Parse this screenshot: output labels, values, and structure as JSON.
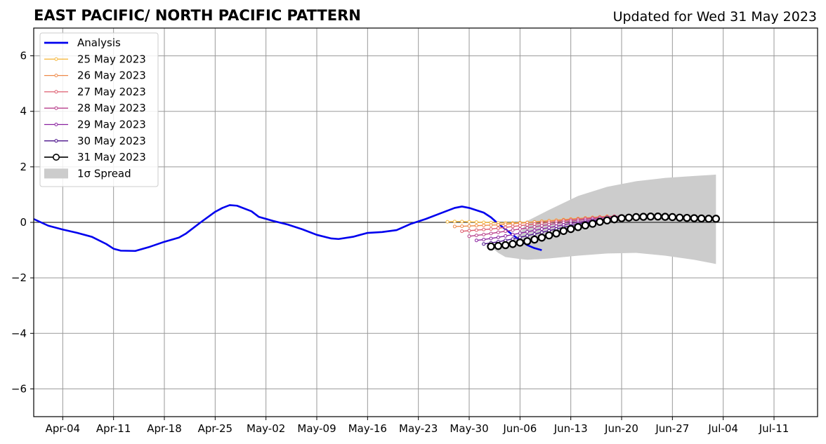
{
  "chart_data": {
    "type": "line",
    "title": "EAST PACIFIC/ NORTH PACIFIC PATTERN",
    "updated_label": "Updated for Wed 31 May 2023",
    "ylim": [
      -7,
      7
    ],
    "yticks": [
      -6,
      -4,
      -2,
      0,
      2,
      4,
      6
    ],
    "ytick_labels": [
      "−6",
      "−4",
      "−2",
      "0",
      "2",
      "4",
      "6"
    ],
    "xlim": [
      "2023-03-31",
      "2023-07-17"
    ],
    "xticks": [
      "2023-04-04",
      "2023-04-11",
      "2023-04-18",
      "2023-04-25",
      "2023-05-02",
      "2023-05-09",
      "2023-05-16",
      "2023-05-23",
      "2023-05-30",
      "2023-06-06",
      "2023-06-13",
      "2023-06-20",
      "2023-06-27",
      "2023-07-04",
      "2023-07-11"
    ],
    "xtick_labels": [
      "Apr-04",
      "Apr-11",
      "Apr-18",
      "Apr-25",
      "May-02",
      "May-09",
      "May-16",
      "May-23",
      "May-30",
      "Jun-06",
      "Jun-13",
      "Jun-20",
      "Jun-27",
      "Jul-04",
      "Jul-11"
    ],
    "grid": true,
    "zero_line": true,
    "legend_position": "top-left",
    "analysis": {
      "name": "Analysis",
      "color": "#0000ee",
      "points": [
        [
          "2023-03-31",
          0.12
        ],
        [
          "2023-04-02",
          -0.12
        ],
        [
          "2023-04-04",
          -0.26
        ],
        [
          "2023-04-06",
          -0.38
        ],
        [
          "2023-04-08",
          -0.52
        ],
        [
          "2023-04-10",
          -0.78
        ],
        [
          "2023-04-11",
          -0.95
        ],
        [
          "2023-04-12",
          -1.02
        ],
        [
          "2023-04-14",
          -1.03
        ],
        [
          "2023-04-16",
          -0.88
        ],
        [
          "2023-04-18",
          -0.7
        ],
        [
          "2023-04-20",
          -0.55
        ],
        [
          "2023-04-21",
          -0.4
        ],
        [
          "2023-04-23",
          0.0
        ],
        [
          "2023-04-25",
          0.38
        ],
        [
          "2023-04-26",
          0.52
        ],
        [
          "2023-04-27",
          0.62
        ],
        [
          "2023-04-28",
          0.6
        ],
        [
          "2023-04-30",
          0.4
        ],
        [
          "2023-05-01",
          0.2
        ],
        [
          "2023-05-03",
          0.05
        ],
        [
          "2023-05-05",
          -0.08
        ],
        [
          "2023-05-07",
          -0.25
        ],
        [
          "2023-05-09",
          -0.45
        ],
        [
          "2023-05-11",
          -0.58
        ],
        [
          "2023-05-12",
          -0.6
        ],
        [
          "2023-05-14",
          -0.52
        ],
        [
          "2023-05-16",
          -0.38
        ],
        [
          "2023-05-18",
          -0.35
        ],
        [
          "2023-05-20",
          -0.28
        ],
        [
          "2023-05-22",
          -0.05
        ],
        [
          "2023-05-24",
          0.12
        ],
        [
          "2023-05-26",
          0.32
        ],
        [
          "2023-05-28",
          0.52
        ],
        [
          "2023-05-29",
          0.57
        ],
        [
          "2023-05-30",
          0.52
        ],
        [
          "2023-06-01",
          0.35
        ],
        [
          "2023-06-02",
          0.18
        ],
        [
          "2023-06-03",
          -0.05
        ],
        [
          "2023-06-04",
          -0.25
        ],
        [
          "2023-06-05",
          -0.45
        ],
        [
          "2023-06-06",
          -0.65
        ],
        [
          "2023-06-07",
          -0.82
        ],
        [
          "2023-06-08",
          -0.93
        ],
        [
          "2023-06-09",
          -1.0
        ]
      ]
    },
    "forecasts": [
      {
        "name": "25 May 2023",
        "color": "#f5b942",
        "start": "2023-05-27",
        "values": [
          0.02,
          0.03,
          0.03,
          0.02,
          0.01,
          0.0,
          -0.01,
          -0.02,
          -0.02,
          -0.02,
          -0.01,
          0.0,
          0.02,
          0.04,
          0.06,
          0.08,
          0.1,
          0.12,
          0.14,
          0.16,
          0.18,
          0.2,
          0.22
        ]
      },
      {
        "name": "26 May 2023",
        "color": "#ee8a4a",
        "start": "2023-05-28",
        "values": [
          -0.15,
          -0.14,
          -0.13,
          -0.12,
          -0.11,
          -0.1,
          -0.09,
          -0.07,
          -0.05,
          -0.03,
          -0.01,
          0.01,
          0.03,
          0.05,
          0.07,
          0.09,
          0.11,
          0.13,
          0.15,
          0.17,
          0.19,
          0.21,
          0.22
        ]
      },
      {
        "name": "27 May 2023",
        "color": "#dd5c6e",
        "start": "2023-05-29",
        "values": [
          -0.32,
          -0.3,
          -0.28,
          -0.26,
          -0.24,
          -0.21,
          -0.18,
          -0.15,
          -0.12,
          -0.09,
          -0.06,
          -0.03,
          0.0,
          0.03,
          0.06,
          0.09,
          0.11,
          0.14,
          0.16,
          0.18,
          0.2,
          0.22
        ]
      },
      {
        "name": "28 May 2023",
        "color": "#b83f8c",
        "start": "2023-05-30",
        "values": [
          -0.5,
          -0.47,
          -0.44,
          -0.4,
          -0.36,
          -0.32,
          -0.28,
          -0.24,
          -0.2,
          -0.16,
          -0.12,
          -0.08,
          -0.04,
          0.0,
          0.04,
          0.07,
          0.1,
          0.13,
          0.16,
          0.19,
          0.21,
          0.23
        ]
      },
      {
        "name": "29 May 2023",
        "color": "#8a22a0",
        "start": "2023-05-31",
        "values": [
          -0.65,
          -0.62,
          -0.58,
          -0.54,
          -0.49,
          -0.44,
          -0.39,
          -0.34,
          -0.29,
          -0.24,
          -0.19,
          -0.14,
          -0.09,
          -0.04,
          0.0,
          0.04,
          0.08,
          0.11,
          0.14,
          0.17,
          0.2
        ]
      },
      {
        "name": "30 May 2023",
        "color": "#4a108a",
        "start": "2023-06-01",
        "values": [
          -0.78,
          -0.74,
          -0.7,
          -0.65,
          -0.6,
          -0.54,
          -0.48,
          -0.42,
          -0.36,
          -0.3,
          -0.24,
          -0.18,
          -0.12,
          -0.06,
          -0.01,
          0.04,
          0.08,
          0.12,
          0.16,
          0.19
        ]
      }
    ],
    "current_forecast": {
      "name": "31 May 2023",
      "color": "#000000",
      "start": "2023-06-02",
      "values": [
        -0.87,
        -0.85,
        -0.82,
        -0.78,
        -0.73,
        -0.68,
        -0.62,
        -0.55,
        -0.47,
        -0.4,
        -0.31,
        -0.24,
        -0.17,
        -0.11,
        -0.05,
        0.02,
        0.07,
        0.11,
        0.15,
        0.17,
        0.19,
        0.2,
        0.21,
        0.21,
        0.2,
        0.19,
        0.17,
        0.16,
        0.15,
        0.14,
        0.13,
        0.13
      ]
    },
    "spread": {
      "name": "1σ Spread",
      "color": "#cccccc",
      "points": [
        [
          "2023-06-02",
          -0.88,
          -0.88
        ],
        [
          "2023-06-03",
          -0.95,
          -1.1
        ],
        [
          "2023-06-04",
          -0.8,
          -1.25
        ],
        [
          "2023-06-06",
          -0.4,
          -1.32
        ],
        [
          "2023-06-07",
          0.05,
          -1.35
        ],
        [
          "2023-06-10",
          0.45,
          -1.3
        ],
        [
          "2023-06-14",
          0.95,
          -1.2
        ],
        [
          "2023-06-18",
          1.28,
          -1.12
        ],
        [
          "2023-06-22",
          1.48,
          -1.1
        ],
        [
          "2023-06-26",
          1.6,
          -1.2
        ],
        [
          "2023-06-30",
          1.67,
          -1.35
        ],
        [
          "2023-07-03",
          1.72,
          -1.5
        ]
      ]
    }
  }
}
